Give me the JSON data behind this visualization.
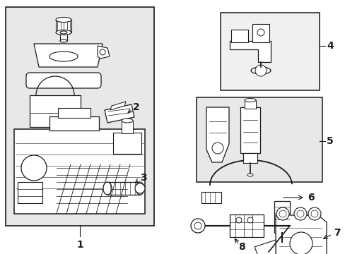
{
  "bg_color": "#ffffff",
  "box1_bg": "#e8e8e8",
  "box4_bg": "#f0f0f0",
  "box5_bg": "#e8e8e8",
  "line_color": "#1a1a1a",
  "fig_width": 4.89,
  "fig_height": 3.6,
  "dpi": 100
}
